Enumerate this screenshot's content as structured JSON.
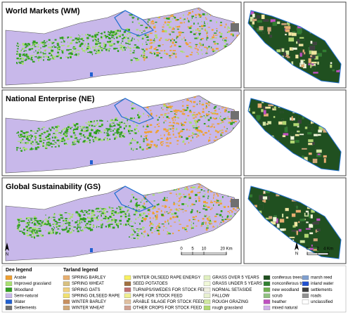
{
  "panels": [
    "World Markets (WM)",
    "National Enterprise (NE)",
    "Global Sustainability (GS)"
  ],
  "north": "N",
  "main_scale": [
    "0",
    "5",
    "10",
    "20 Km"
  ],
  "inset_scale": [
    "0",
    "2",
    "4 Km"
  ],
  "dee_legend": {
    "title": "Dee legend",
    "items": [
      {
        "label": "Arable",
        "color": "#f0a030"
      },
      {
        "label": "Improved grassland",
        "color": "#a8e070"
      },
      {
        "label": "Woodland",
        "color": "#30a020"
      },
      {
        "label": "Semi-natural",
        "color": "#c8b8ea"
      },
      {
        "label": "Water",
        "color": "#2060d0"
      },
      {
        "label": "Settlements",
        "color": "#707070"
      }
    ]
  },
  "tarland_legend": {
    "title": "Tarland legend",
    "columns": [
      [
        {
          "label": "SPRING BARLEY",
          "color": "#e8b070"
        },
        {
          "label": "SPRING WHEAT",
          "color": "#d8c080"
        },
        {
          "label": "SPRING OATS",
          "color": "#f0d080"
        },
        {
          "label": "SPRING OILSEED RAPE",
          "color": "#f0e070"
        },
        {
          "label": "WINTER BARLEY",
          "color": "#c89060"
        },
        {
          "label": "WINTER WHEAT",
          "color": "#d0a878"
        }
      ],
      [
        {
          "label": "WINTER OILSEED RAPE ENERGY",
          "color": "#f8f060"
        },
        {
          "label": "SEED POTATOES",
          "color": "#a07040"
        },
        {
          "label": "TURNIPS/SWEDES FOR STOCK FEED",
          "color": "#c07070"
        },
        {
          "label": "RAPE FOR STOCK FEED",
          "color": "#f0f090"
        },
        {
          "label": "ARABLE SILAGE FOR STOCK FEED",
          "color": "#e0c0a0"
        },
        {
          "label": "OTHER CROPS FOR STOCK FEED",
          "color": "#d0a090"
        }
      ],
      [
        {
          "label": "GRASS OVER 5 YEARS",
          "color": "#e0f0c0"
        },
        {
          "label": "GRASS UNDER 5 YEARS",
          "color": "#f0f8d8"
        },
        {
          "label": "NORMAL SETASIDE",
          "color": "#f0f0e0"
        },
        {
          "label": "FALLOW",
          "color": "#e8f0d0"
        },
        {
          "label": "ROUGH GRAZING",
          "color": "#d0e8a0"
        },
        {
          "label": "rough grassland",
          "color": "#b0d870"
        }
      ],
      [
        {
          "label": "coniferous trees",
          "color": "#205020"
        },
        {
          "label": "nonconiferous trees",
          "color": "#308030"
        },
        {
          "label": "new woodland",
          "color": "#70b050"
        },
        {
          "label": "scrub",
          "color": "#90c080"
        },
        {
          "label": "heather",
          "color": "#c050c0"
        },
        {
          "label": "mixed natural",
          "color": "#d0b0e8"
        }
      ],
      [
        {
          "label": "marsh reed",
          "color": "#80a0d0"
        },
        {
          "label": "inland water",
          "color": "#2050d0"
        },
        {
          "label": "settlements",
          "color": "#404040"
        },
        {
          "label": "roads",
          "color": "#909090"
        },
        {
          "label": "unclassified",
          "color": "#ffffff"
        }
      ]
    ]
  }
}
